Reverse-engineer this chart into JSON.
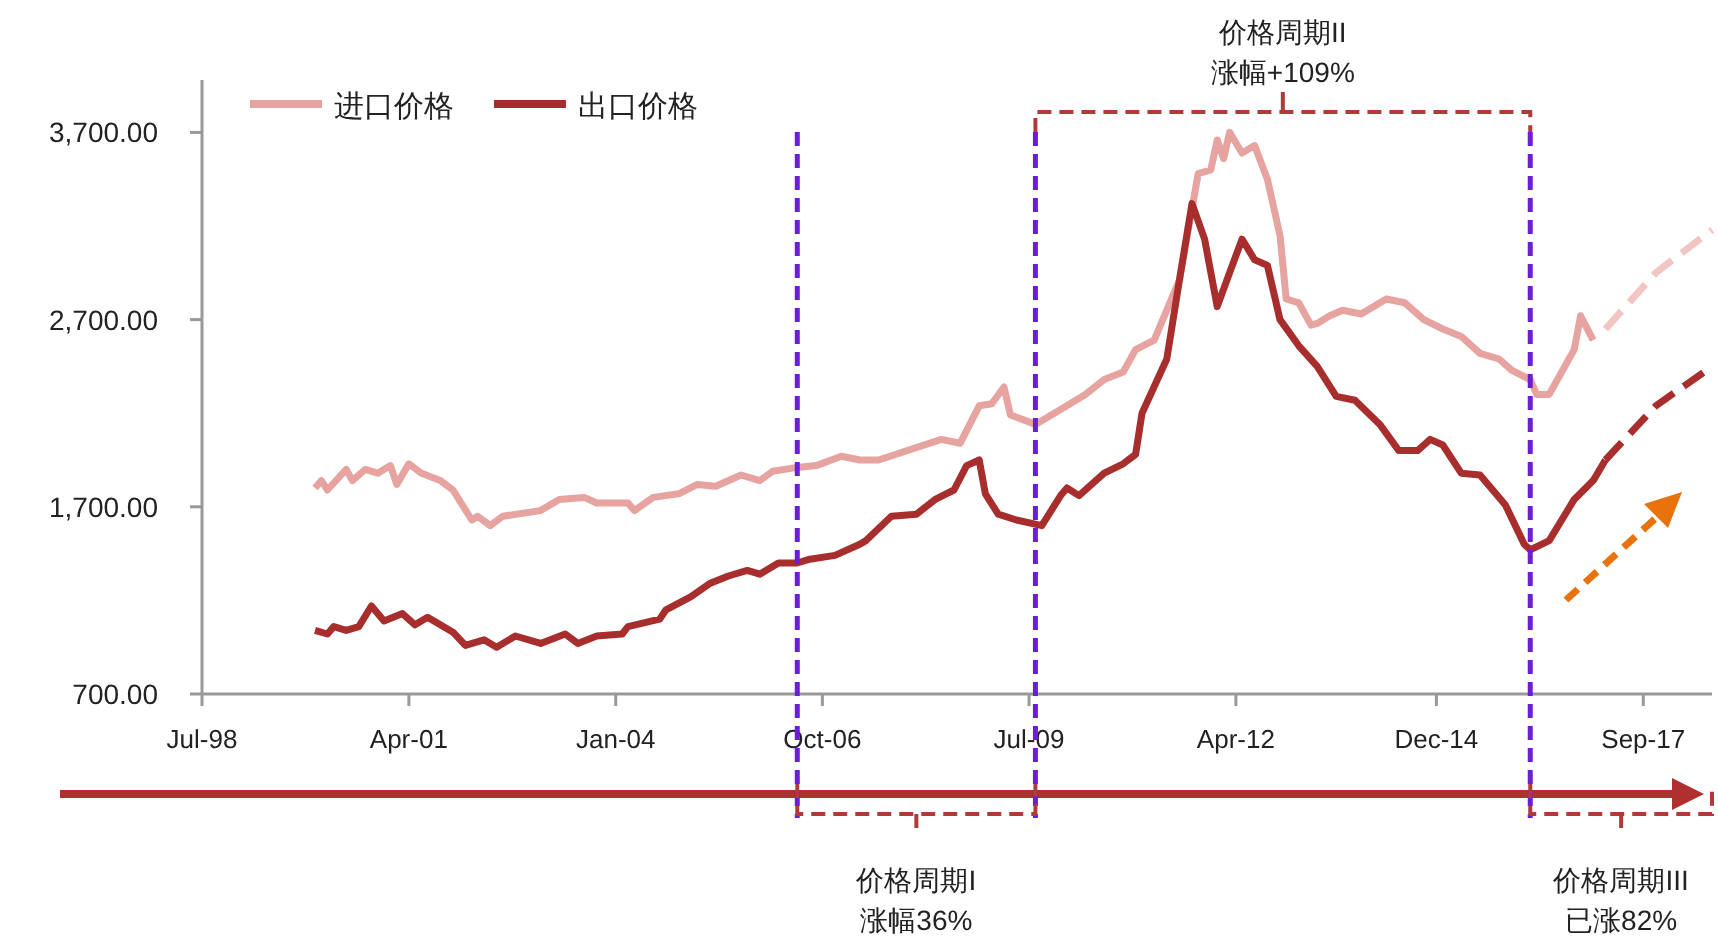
{
  "chart_data": {
    "type": "line",
    "legend": "top left",
    "marker": "none",
    "grid": false,
    "xlim": [
      "1998-07",
      "2018-08"
    ],
    "ylim": [
      700,
      3980
    ],
    "xticks": [
      {
        "value": "1998-07",
        "label": "Jul-98"
      },
      {
        "value": "2001-04",
        "label": "Apr-01"
      },
      {
        "value": "2004-01",
        "label": "Jan-04"
      },
      {
        "value": "2006-10",
        "label": "Oct-06"
      },
      {
        "value": "2009-07",
        "label": "Jul-09"
      },
      {
        "value": "2012-04",
        "label": "Apr-12"
      },
      {
        "value": "2014-12",
        "label": "Dec-14"
      },
      {
        "value": "2017-09",
        "label": "Sep-17"
      }
    ],
    "yticks": [
      {
        "value": 700,
        "label": "700.00"
      },
      {
        "value": 1700,
        "label": "1,700.00"
      },
      {
        "value": 2700,
        "label": "2,700.00"
      },
      {
        "value": 3700,
        "label": "3,700.00"
      }
    ],
    "series": [
      {
        "name": "进口价格",
        "color": "#e6a3a0",
        "line_style": "solid",
        "x": [
          "2000-01",
          "2000-02",
          "2000-03",
          "2000-06",
          "2000-07",
          "2000-09",
          "2000-11",
          "2001-01",
          "2001-02",
          "2001-04",
          "2001-06",
          "2001-09",
          "2001-11",
          "2002-02",
          "2002-03",
          "2002-05",
          "2002-07",
          "2003-01",
          "2003-04",
          "2003-08",
          "2003-10",
          "2004-03",
          "2004-04",
          "2004-07",
          "2004-11",
          "2005-02",
          "2005-05",
          "2005-09",
          "2005-12",
          "2006-02",
          "2006-06",
          "2006-09",
          "2007-01",
          "2007-04",
          "2007-07",
          "2008-05",
          "2008-08",
          "2008-11",
          "2009-01",
          "2009-03",
          "2009-04",
          "2009-08",
          "2009-12",
          "2010-04",
          "2010-07",
          "2010-10",
          "2010-12",
          "2011-03",
          "2011-05",
          "2011-07",
          "2011-10",
          "2011-12",
          "2012-01",
          "2012-02",
          "2012-03",
          "2012-05",
          "2012-07",
          "2012-09",
          "2012-11",
          "2012-12",
          "2013-02",
          "2013-04",
          "2013-05",
          "2013-07",
          "2013-09",
          "2013-12",
          "2014-04",
          "2014-07",
          "2014-10",
          "2015-01",
          "2015-04",
          "2015-07",
          "2015-10",
          "2015-12",
          "2016-03",
          "2016-04",
          "2016-06",
          "2016-07",
          "2016-10",
          "2016-11",
          "2017-01"
        ],
        "values": [
          1800,
          1840,
          1790,
          1900,
          1840,
          1900,
          1880,
          1920,
          1820,
          1930,
          1880,
          1840,
          1790,
          1630,
          1650,
          1600,
          1650,
          1680,
          1740,
          1750,
          1720,
          1720,
          1680,
          1750,
          1770,
          1820,
          1810,
          1870,
          1840,
          1890,
          1910,
          1920,
          1970,
          1950,
          1950,
          2060,
          2040,
          2240,
          2250,
          2340,
          2190,
          2140,
          2220,
          2300,
          2380,
          2420,
          2540,
          2590,
          2750,
          2910,
          3480,
          3500,
          3660,
          3560,
          3700,
          3590,
          3630,
          3450,
          3150,
          2810,
          2790,
          2670,
          2680,
          2720,
          2750,
          2730,
          2810,
          2790,
          2700,
          2650,
          2610,
          2520,
          2490,
          2430,
          2380,
          2300,
          2300,
          2360,
          2540,
          2720,
          2590
        ]
      },
      {
        "name": "出口价格",
        "color": "#a82d2d",
        "line_style": "solid",
        "x": [
          "2000-01",
          "2000-03",
          "2000-04",
          "2000-06",
          "2000-08",
          "2000-10",
          "2000-12",
          "2001-03",
          "2001-05",
          "2001-07",
          "2001-11",
          "2002-01",
          "2002-04",
          "2002-06",
          "2002-09",
          "2003-01",
          "2003-05",
          "2003-07",
          "2003-10",
          "2004-02",
          "2004-03",
          "2004-08",
          "2004-09",
          "2005-01",
          "2005-04",
          "2005-07",
          "2005-10",
          "2005-12",
          "2006-03",
          "2006-06",
          "2006-08",
          "2006-12",
          "2007-04",
          "2007-05",
          "2007-09",
          "2008-01",
          "2008-04",
          "2008-07",
          "2008-09",
          "2008-11",
          "2008-12",
          "2009-02",
          "2009-05",
          "2009-09",
          "2009-12",
          "2010-01",
          "2010-03",
          "2010-07",
          "2010-10",
          "2010-12",
          "2011-01",
          "2011-05",
          "2011-07",
          "2011-09",
          "2011-11",
          "2012-01",
          "2012-03",
          "2012-05",
          "2012-07",
          "2012-09",
          "2012-11",
          "2013-02",
          "2013-05",
          "2013-08",
          "2013-11",
          "2014-03",
          "2014-06",
          "2014-09",
          "2014-11",
          "2015-01",
          "2015-04",
          "2015-07",
          "2015-11",
          "2016-02",
          "2016-03",
          "2016-06",
          "2016-10",
          "2017-01",
          "2017-03"
        ],
        "values": [
          1040,
          1020,
          1060,
          1040,
          1060,
          1170,
          1090,
          1130,
          1070,
          1110,
          1030,
          960,
          990,
          950,
          1010,
          970,
          1020,
          970,
          1010,
          1020,
          1060,
          1100,
          1150,
          1220,
          1290,
          1330,
          1360,
          1340,
          1400,
          1400,
          1420,
          1440,
          1500,
          1520,
          1650,
          1660,
          1740,
          1790,
          1920,
          1950,
          1770,
          1660,
          1630,
          1600,
          1760,
          1800,
          1760,
          1880,
          1930,
          1980,
          2200,
          2490,
          2910,
          3320,
          3130,
          2770,
          2950,
          3130,
          3020,
          2990,
          2700,
          2560,
          2450,
          2290,
          2270,
          2140,
          2000,
          2000,
          2060,
          2030,
          1880,
          1870,
          1710,
          1500,
          1470,
          1520,
          1740,
          1840,
          1950
        ]
      },
      {
        "color": "#f2c4c2",
        "line_style": "dashed",
        "x": [
          "2017-03",
          "2017-11",
          "2018-08"
        ],
        "values": [
          2650,
          2950,
          3180
        ]
      },
      {
        "color": "#a82d2d",
        "line_style": "dashed",
        "x": [
          "2017-03",
          "2017-11",
          "2018-08"
        ],
        "values": [
          1950,
          2240,
          2450
        ]
      }
    ],
    "ref_lines": [
      {
        "axis": "x",
        "value": "2006-06",
        "color": "#6a1fd6",
        "line_style": "dashed"
      },
      {
        "axis": "x",
        "value": "2009-08",
        "color": "#6a1fd6",
        "line_style": "dashed"
      },
      {
        "axis": "x",
        "value": "2016-03",
        "color": "#6a1fd6",
        "line_style": "dashed"
      }
    ],
    "annotations": [
      "价格周期I\n涨幅36%",
      "价格周期II\n涨幅+109%",
      "价格周期III\n已涨82%"
    ]
  }
}
